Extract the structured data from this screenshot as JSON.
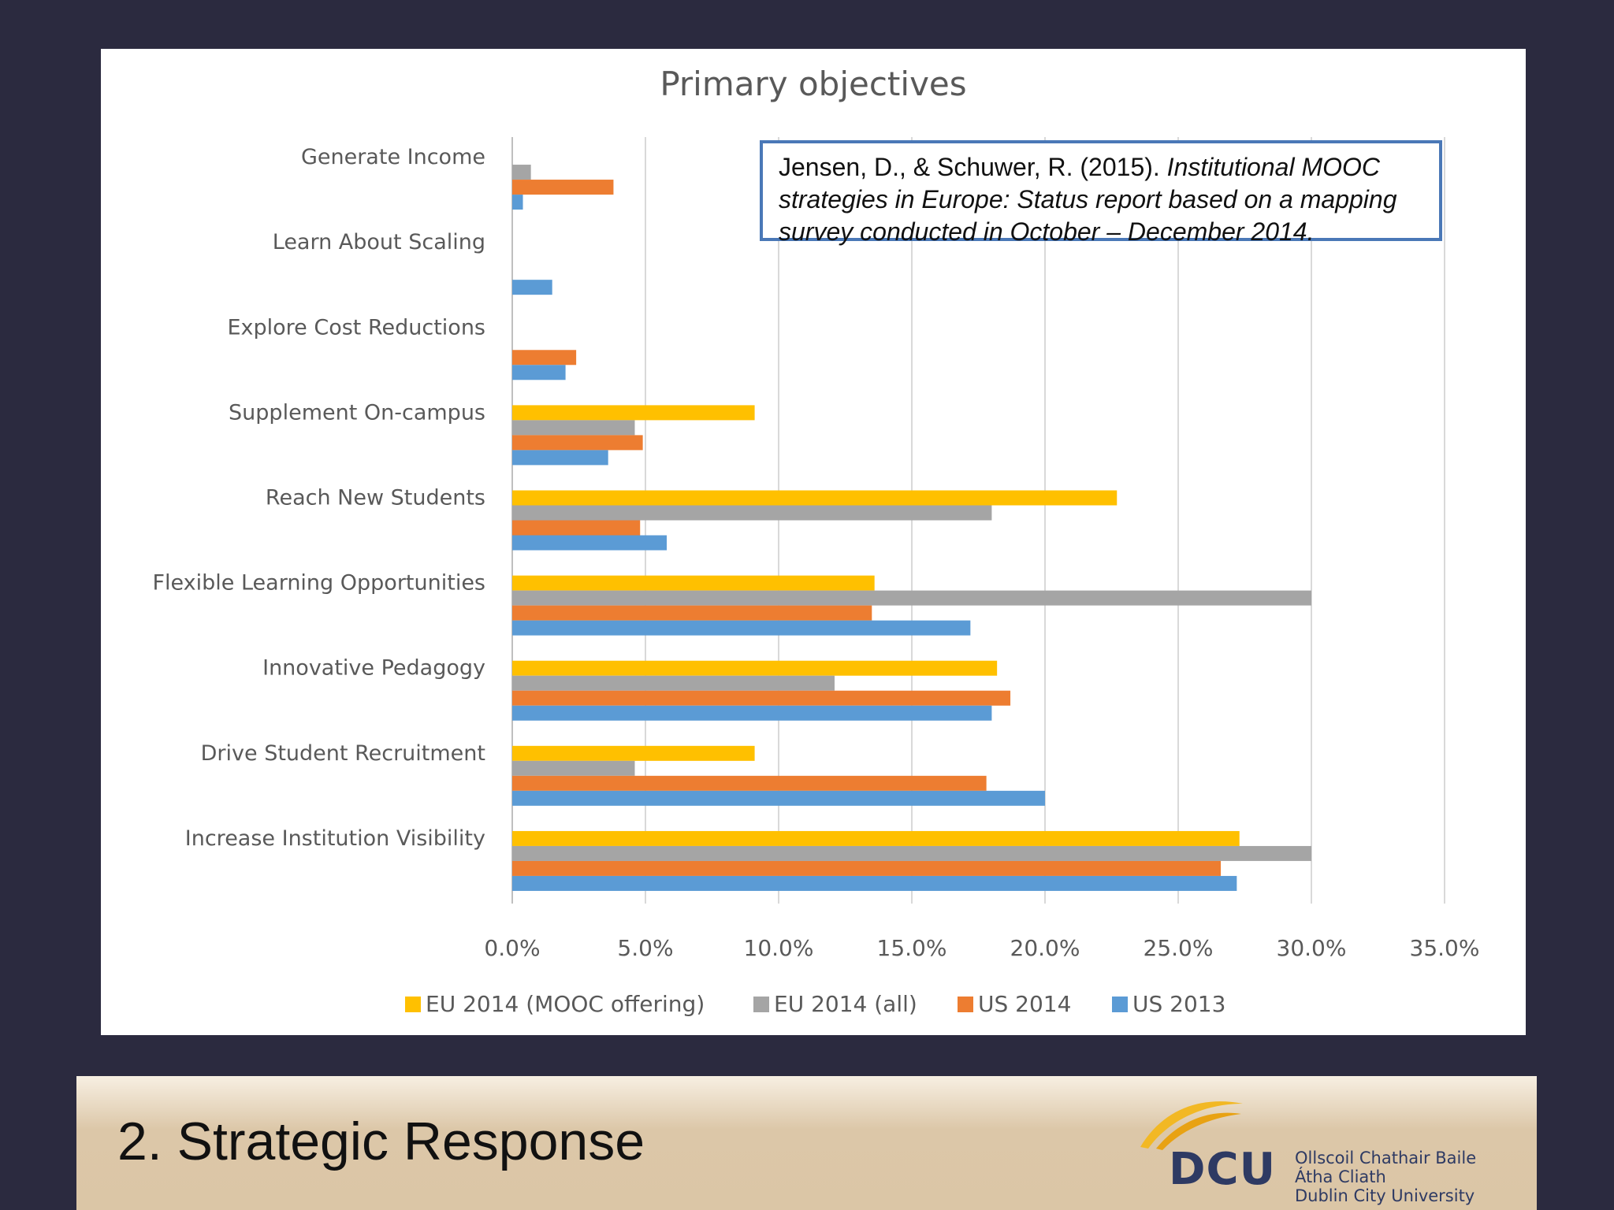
{
  "chart_data": {
    "type": "bar",
    "orientation": "horizontal",
    "title": "Primary objectives",
    "categories": [
      "Generate Income",
      "Learn About Scaling",
      "Explore Cost Reductions",
      "Supplement On-campus",
      "Reach New Students",
      "Flexible Learning Opportunities",
      "Innovative Pedagogy",
      "Drive Student Recruitment",
      "Increase Institution Visibility"
    ],
    "series": [
      {
        "name": "EU 2014 (MOOC offering)",
        "color": "#ffc000",
        "values": [
          0,
          0,
          0,
          9.1,
          22.7,
          13.6,
          18.2,
          9.1,
          27.3
        ]
      },
      {
        "name": "EU 2014 (all)",
        "color": "#a5a5a5",
        "values": [
          0.7,
          0,
          0,
          4.6,
          18.0,
          30.0,
          12.1,
          4.6,
          30.0
        ]
      },
      {
        "name": "US 2014",
        "color": "#ed7d31",
        "values": [
          3.8,
          0,
          2.4,
          4.9,
          4.8,
          13.5,
          18.7,
          17.8,
          26.6
        ]
      },
      {
        "name": "US 2013",
        "color": "#5b9bd5",
        "values": [
          0.4,
          1.5,
          2.0,
          3.6,
          5.8,
          17.2,
          18.0,
          20.0,
          27.2
        ]
      }
    ],
    "xlim": [
      0,
      35
    ],
    "xticks": [
      "0.0%",
      "5.0%",
      "10.0%",
      "15.0%",
      "20.0%",
      "25.0%",
      "30.0%",
      "35.0%"
    ],
    "grid": true,
    "legend_position": "bottom"
  },
  "citation": {
    "plain": "Jensen, D., & Schuwer, R. (2015). ",
    "italic": "Institutional MOOC strategies in Europe: Status report based on a mapping survey conducted in October – December 2014."
  },
  "footer": {
    "title": "2. Strategic Response",
    "logo_text": "DCU",
    "logo_line1": "Ollscoil Chathair Baile Átha Cliath",
    "logo_line2": "Dublin City University"
  }
}
